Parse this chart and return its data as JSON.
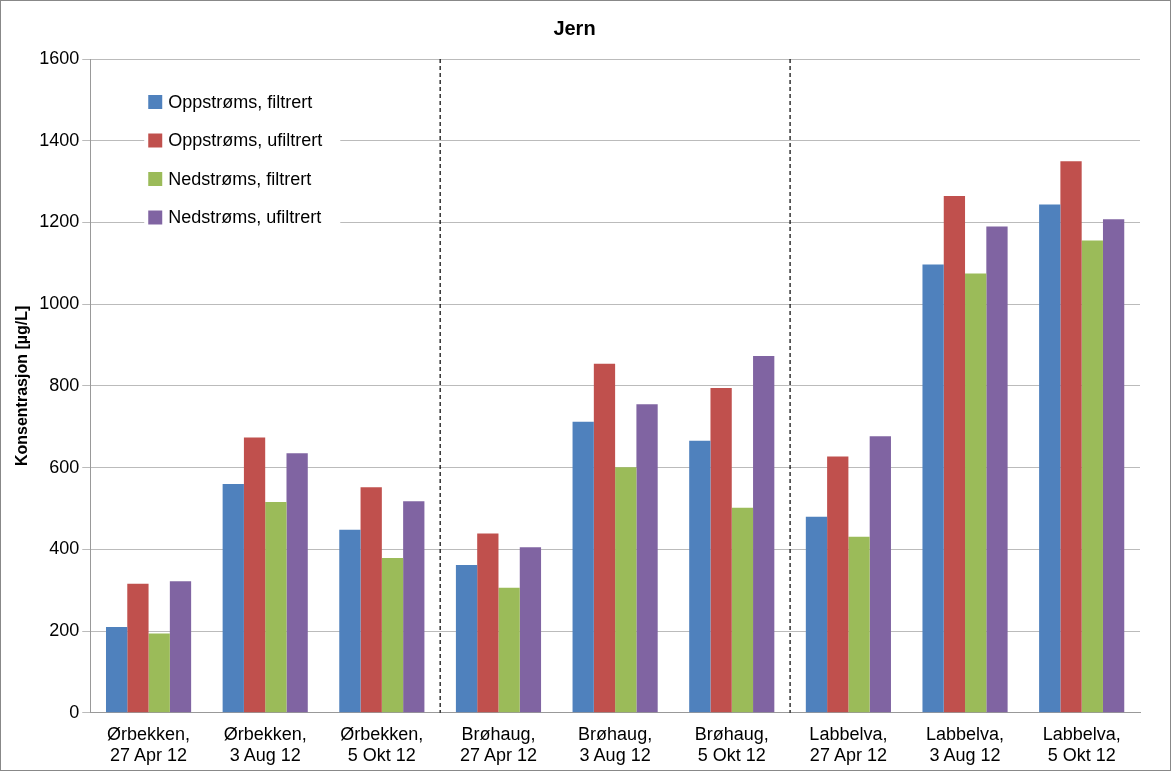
{
  "chart_data": {
    "type": "bar",
    "title": "Jern",
    "ylabel": "Konsentrasjon [µg/L]",
    "categories": [
      "Ørbekken, 27 Apr 12",
      "Ørbekken, 3 Aug 12",
      "Ørbekken, 5 Okt 12",
      "Brøhaug, 27 Apr 12",
      "Brøhaug, 3 Aug 12",
      "Brøhaug, 5 Okt 12",
      "Labbelva, 27 Apr 12",
      "Labbelva, 3 Aug 12",
      "Labbelva, 5 Okt 12"
    ],
    "series": [
      {
        "name": "Oppstrøms, filtrert",
        "color": "#4f81bd",
        "values": [
          210,
          560,
          448,
          362,
          712,
          666,
          480,
          1097,
          1244
        ]
      },
      {
        "name": "Oppstrøms, ufiltrert",
        "color": "#c0504d",
        "values": [
          316,
          674,
          552,
          439,
          854,
          795,
          627,
          1265,
          1350
        ]
      },
      {
        "name": "Nedstrøms, filtrert",
        "color": "#9bbb59",
        "values": [
          194,
          516,
          379,
          306,
          601,
          502,
          431,
          1075,
          1156
        ]
      },
      {
        "name": "Nedstrøms, ufiltrert",
        "color": "#8064a2",
        "values": [
          322,
          635,
          518,
          405,
          755,
          873,
          677,
          1190,
          1208
        ]
      }
    ],
    "ylim": [
      0,
      1600
    ],
    "yticks": [
      0,
      200,
      400,
      600,
      800,
      1000,
      1200,
      1400,
      1600
    ],
    "grid": "y",
    "legend": "top left"
  }
}
